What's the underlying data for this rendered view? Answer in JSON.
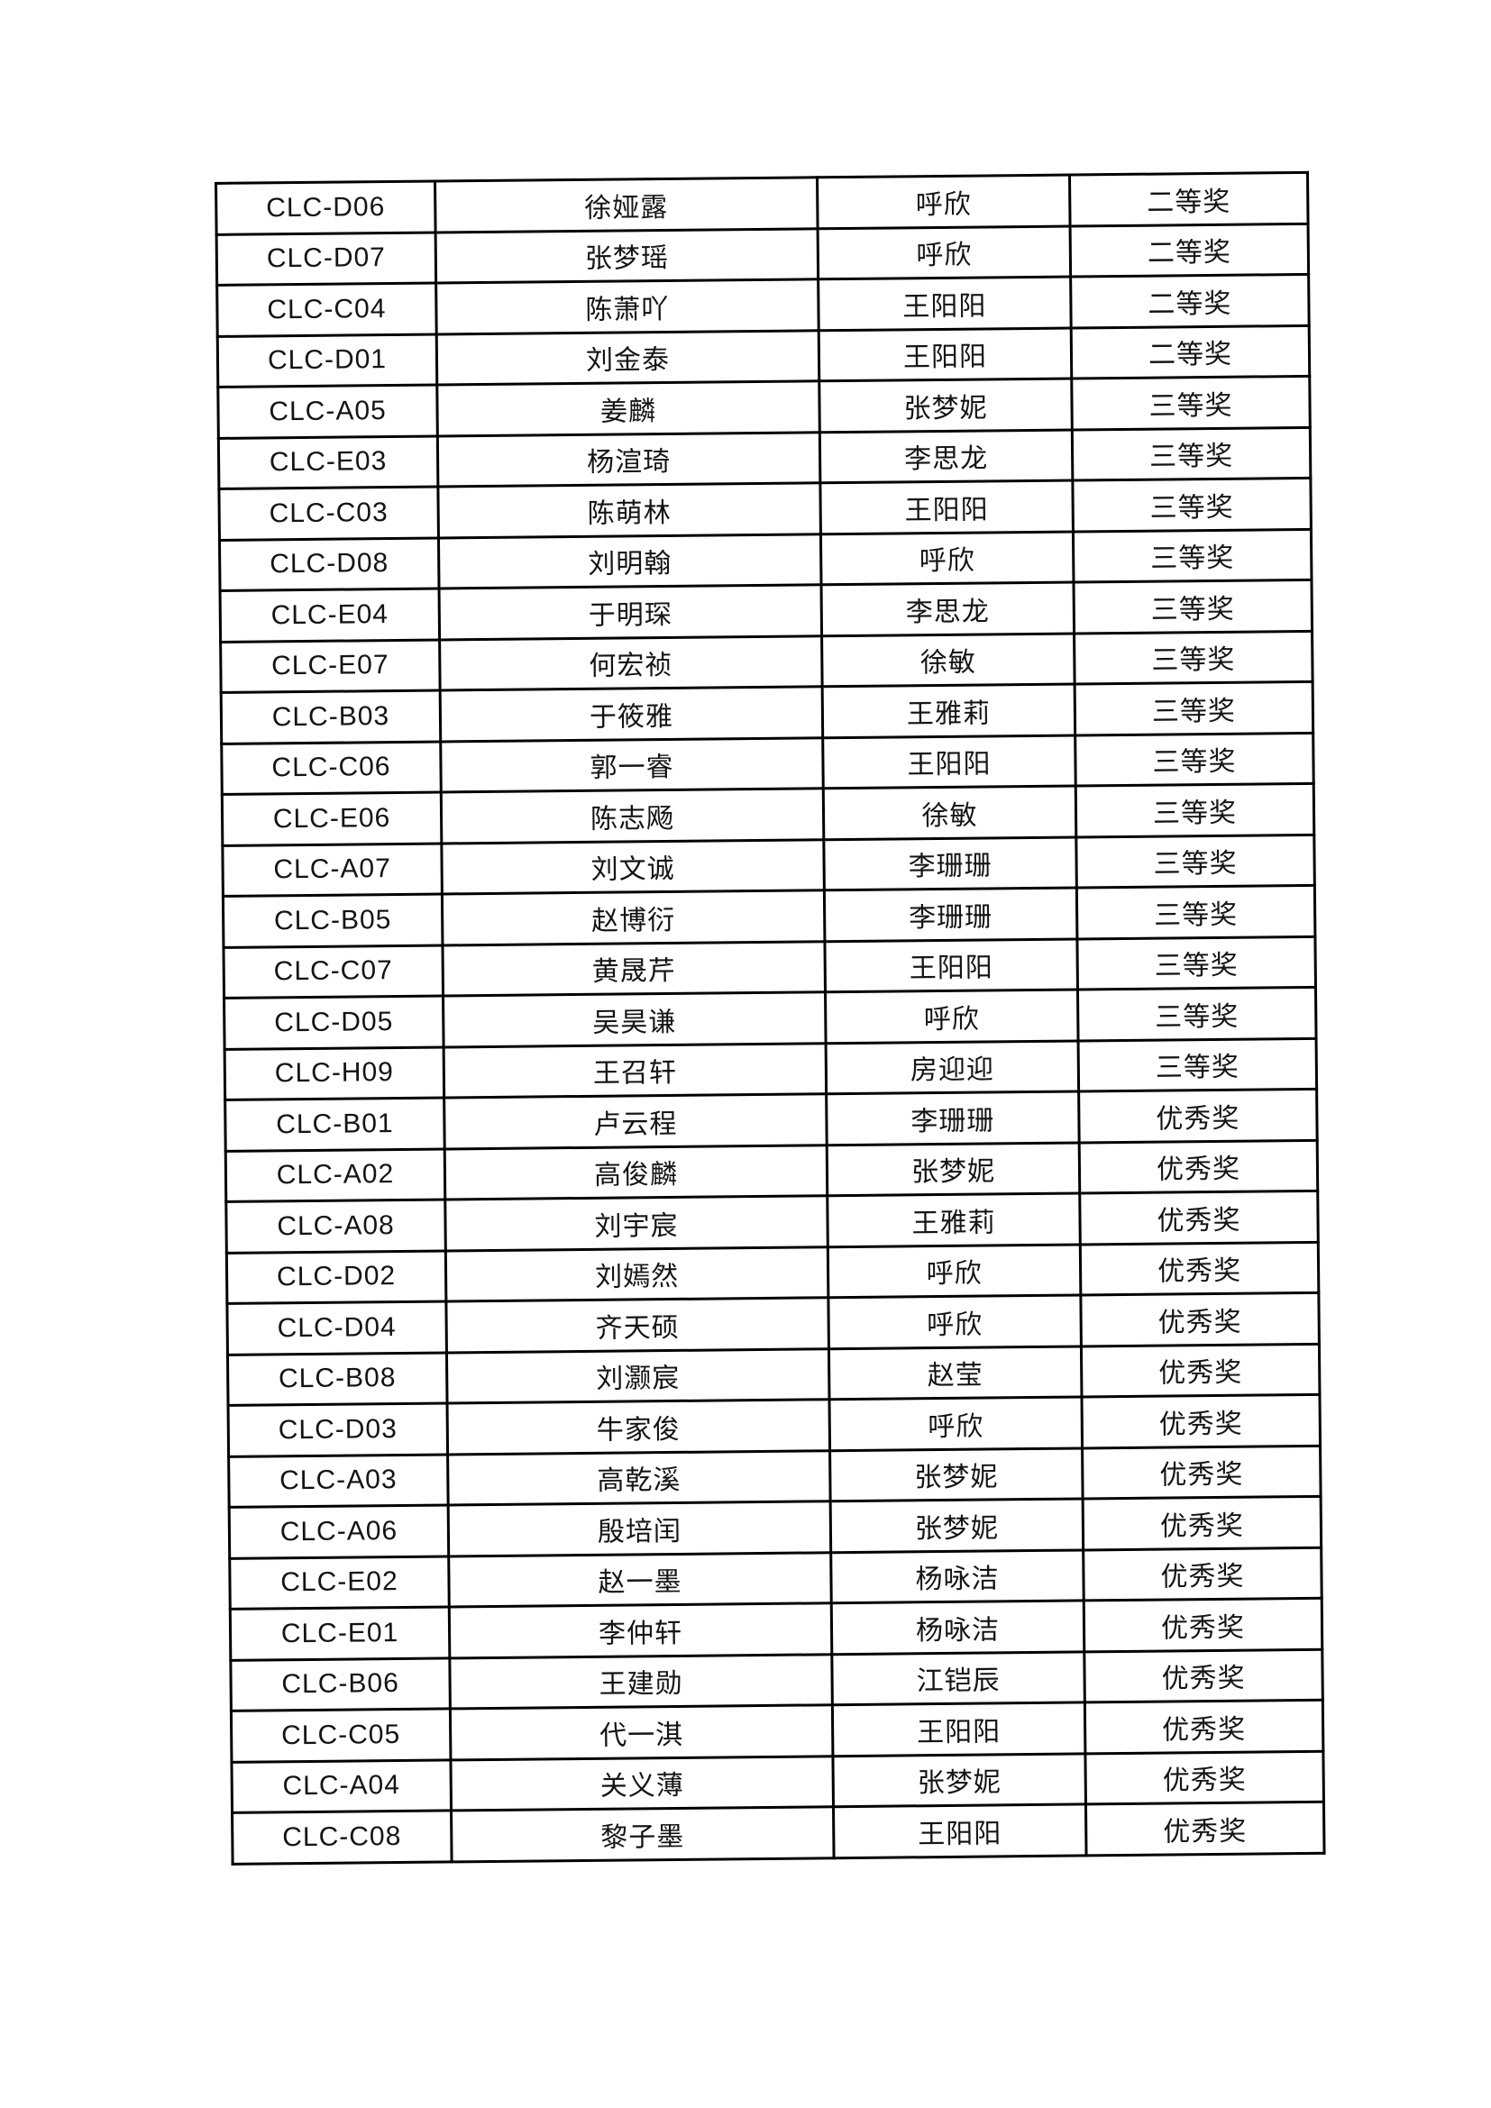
{
  "colors": {
    "page_background": "#ffffff",
    "table_border": "#000000",
    "text": "#141414"
  },
  "table": {
    "column_keys": [
      "id",
      "student",
      "teacher",
      "award"
    ],
    "rows": [
      {
        "id": "CLC-D06",
        "student": "徐娅露",
        "teacher": "呼欣",
        "award": "二等奖"
      },
      {
        "id": "CLC-D07",
        "student": "张梦瑶",
        "teacher": "呼欣",
        "award": "二等奖"
      },
      {
        "id": "CLC-C04",
        "student": "陈萧吖",
        "teacher": "王阳阳",
        "award": "二等奖"
      },
      {
        "id": "CLC-D01",
        "student": "刘金泰",
        "teacher": "王阳阳",
        "award": "二等奖"
      },
      {
        "id": "CLC-A05",
        "student": "姜麟",
        "teacher": "张梦妮",
        "award": "三等奖"
      },
      {
        "id": "CLC-E03",
        "student": "杨渲琦",
        "teacher": "李思龙",
        "award": "三等奖"
      },
      {
        "id": "CLC-C03",
        "student": "陈萌林",
        "teacher": "王阳阳",
        "award": "三等奖"
      },
      {
        "id": "CLC-D08",
        "student": "刘明翰",
        "teacher": "呼欣",
        "award": "三等奖"
      },
      {
        "id": "CLC-E04",
        "student": "于明琛",
        "teacher": "李思龙",
        "award": "三等奖"
      },
      {
        "id": "CLC-E07",
        "student": "何宏祯",
        "teacher": "徐敏",
        "award": "三等奖"
      },
      {
        "id": "CLC-B03",
        "student": "于筱雅",
        "teacher": "王雅莉",
        "award": "三等奖"
      },
      {
        "id": "CLC-C06",
        "student": "郭一睿",
        "teacher": "王阳阳",
        "award": "三等奖"
      },
      {
        "id": "CLC-E06",
        "student": "陈志飏",
        "teacher": "徐敏",
        "award": "三等奖"
      },
      {
        "id": "CLC-A07",
        "student": "刘文诚",
        "teacher": "李珊珊",
        "award": "三等奖"
      },
      {
        "id": "CLC-B05",
        "student": "赵博衍",
        "teacher": "李珊珊",
        "award": "三等奖"
      },
      {
        "id": "CLC-C07",
        "student": "黄晟芹",
        "teacher": "王阳阳",
        "award": "三等奖"
      },
      {
        "id": "CLC-D05",
        "student": "吴昊谦",
        "teacher": "呼欣",
        "award": "三等奖"
      },
      {
        "id": "CLC-H09",
        "student": "王召轩",
        "teacher": "房迎迎",
        "award": "三等奖"
      },
      {
        "id": "CLC-B01",
        "student": "卢云程",
        "teacher": "李珊珊",
        "award": "优秀奖"
      },
      {
        "id": "CLC-A02",
        "student": "高俊麟",
        "teacher": "张梦妮",
        "award": "优秀奖"
      },
      {
        "id": "CLC-A08",
        "student": "刘宇宸",
        "teacher": "王雅莉",
        "award": "优秀奖"
      },
      {
        "id": "CLC-D02",
        "student": "刘嫣然",
        "teacher": "呼欣",
        "award": "优秀奖"
      },
      {
        "id": "CLC-D04",
        "student": "齐天硕",
        "teacher": "呼欣",
        "award": "优秀奖"
      },
      {
        "id": "CLC-B08",
        "student": "刘灏宸",
        "teacher": "赵莹",
        "award": "优秀奖"
      },
      {
        "id": "CLC-D03",
        "student": "牛家俊",
        "teacher": "呼欣",
        "award": "优秀奖"
      },
      {
        "id": "CLC-A03",
        "student": "高乾溪",
        "teacher": "张梦妮",
        "award": "优秀奖"
      },
      {
        "id": "CLC-A06",
        "student": "殷培闰",
        "teacher": "张梦妮",
        "award": "优秀奖"
      },
      {
        "id": "CLC-E02",
        "student": "赵一墨",
        "teacher": "杨咏洁",
        "award": "优秀奖"
      },
      {
        "id": "CLC-E01",
        "student": "李仲轩",
        "teacher": "杨咏洁",
        "award": "优秀奖"
      },
      {
        "id": "CLC-B06",
        "student": "王建勋",
        "teacher": "江铠辰",
        "award": "优秀奖"
      },
      {
        "id": "CLC-C05",
        "student": "代一淇",
        "teacher": "王阳阳",
        "award": "优秀奖"
      },
      {
        "id": "CLC-A04",
        "student": "关义薄",
        "teacher": "张梦妮",
        "award": "优秀奖"
      },
      {
        "id": "CLC-C08",
        "student": "黎子墨",
        "teacher": "王阳阳",
        "award": "优秀奖"
      }
    ]
  }
}
